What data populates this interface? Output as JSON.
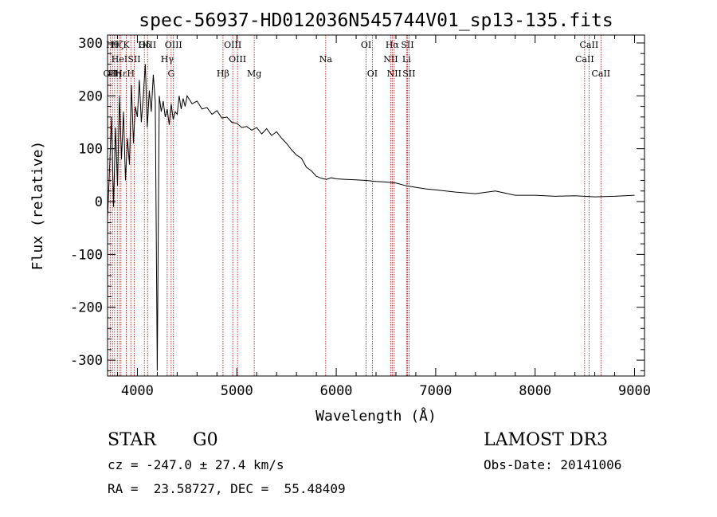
{
  "chart_data": {
    "type": "line",
    "title": "spec-56937-HD012036N545744V01_sp13-135.fits",
    "xlabel": "Wavelength (Å)",
    "ylabel": "Flux (relative)",
    "xlim": [
      3700,
      9100
    ],
    "ylim": [
      -330,
      315
    ],
    "xticks": [
      4000,
      5000,
      6000,
      7000,
      8000,
      9000
    ],
    "yticks": [
      -300,
      -200,
      -100,
      0,
      100,
      200,
      300
    ],
    "x_minor_step": 200,
    "y_minor_step": 20,
    "series": [
      {
        "name": "spectrum",
        "x": [
          3700,
          3720,
          3740,
          3760,
          3780,
          3800,
          3820,
          3840,
          3860,
          3880,
          3900,
          3920,
          3940,
          3960,
          3980,
          4000,
          4020,
          4040,
          4060,
          4080,
          4100,
          4120,
          4140,
          4160,
          4180,
          4200,
          4220,
          4240,
          4260,
          4280,
          4300,
          4320,
          4340,
          4360,
          4380,
          4400,
          4420,
          4440,
          4460,
          4480,
          4500,
          4550,
          4600,
          4650,
          4700,
          4750,
          4800,
          4850,
          4900,
          4950,
          5000,
          5050,
          5100,
          5150,
          5200,
          5250,
          5300,
          5350,
          5400,
          5450,
          5500,
          5550,
          5600,
          5650,
          5700,
          5750,
          5800,
          5850,
          5900,
          5950,
          6000,
          6100,
          6200,
          6300,
          6400,
          6500,
          6600,
          6700,
          6800,
          6900,
          7000,
          7200,
          7400,
          7600,
          7800,
          8000,
          8200,
          8400,
          8600,
          8800,
          9000
        ],
        "y": [
          -30,
          60,
          160,
          -10,
          140,
          30,
          200,
          80,
          170,
          40,
          120,
          70,
          220,
          110,
          180,
          160,
          230,
          150,
          200,
          260,
          140,
          210,
          170,
          240,
          190,
          -320,
          200,
          170,
          190,
          160,
          175,
          145,
          185,
          155,
          170,
          165,
          200,
          175,
          195,
          180,
          200,
          185,
          190,
          175,
          178,
          165,
          172,
          158,
          160,
          150,
          148,
          140,
          142,
          135,
          140,
          128,
          138,
          125,
          132,
          120,
          110,
          98,
          88,
          82,
          65,
          58,
          48,
          44,
          42,
          45,
          43,
          42,
          41,
          40,
          38,
          37,
          35,
          30,
          27,
          24,
          22,
          18,
          15,
          20,
          12,
          12,
          10,
          11,
          9,
          10,
          12
        ]
      }
    ],
    "lines": [
      {
        "label": "OII",
        "wl": 3727,
        "row": 2
      },
      {
        "label": "Hθ",
        "wl": 3750,
        "row": 0
      },
      {
        "label": "Hη",
        "wl": 3771,
        "row": 2
      },
      {
        "label": "Hζ",
        "wl": 3798,
        "row": 0
      },
      {
        "label": "HeI",
        "wl": 3820,
        "row": 1
      },
      {
        "label": "Hε",
        "wl": 3835,
        "row": 2
      },
      {
        "label": "K",
        "wl": 3889,
        "row": 0
      },
      {
        "label": "H",
        "wl": 3934,
        "row": 2
      },
      {
        "label": "SII",
        "wl": 3968,
        "row": 1
      },
      {
        "label": "Hδ",
        "wl": 4070,
        "row": 0
      },
      {
        "label": "OIII",
        "wl": 4102,
        "row": 0
      },
      {
        "label": "Hγ",
        "wl": 4300,
        "row": 1
      },
      {
        "label": "G",
        "wl": 4340,
        "row": 2
      },
      {
        "label": "OIII",
        "wl": 4363,
        "row": 0
      },
      {
        "label": "Hβ",
        "wl": 4861,
        "row": 2
      },
      {
        "label": "OIII",
        "wl": 4959,
        "row": 0
      },
      {
        "label": "OIII",
        "wl": 5007,
        "row": 1
      },
      {
        "label": "Mg",
        "wl": 5175,
        "row": 2
      },
      {
        "label": "Na",
        "wl": 5894,
        "row": 1
      },
      {
        "label": "OI",
        "wl": 6300,
        "row": 0
      },
      {
        "label": "OI",
        "wl": 6363,
        "row": 2
      },
      {
        "label": "NII",
        "wl": 6548,
        "row": 1
      },
      {
        "label": "Hα",
        "wl": 6563,
        "row": 0
      },
      {
        "label": "NII",
        "wl": 6583,
        "row": 2
      },
      {
        "label": "Li",
        "wl": 6707,
        "row": 1
      },
      {
        "label": "SII",
        "wl": 6716,
        "row": 0
      },
      {
        "label": "SII",
        "wl": 6731,
        "row": 2
      },
      {
        "label": "CaII",
        "wl": 8498,
        "row": 1
      },
      {
        "label": "CaII",
        "wl": 8542,
        "row": 0
      },
      {
        "label": "CaII",
        "wl": 8662,
        "row": 2
      }
    ]
  },
  "info": {
    "object_class": "STAR",
    "subclass": "G0",
    "survey": "LAMOST DR3",
    "cz": "cz = -247.0 ± 27.4 km/s",
    "obs_date": "Obs-Date: 20141006",
    "coords": "RA =  23.58727, DEC =  55.48409"
  },
  "colors": {
    "line_marker": "#c00000",
    "spectrum": "#000000"
  }
}
